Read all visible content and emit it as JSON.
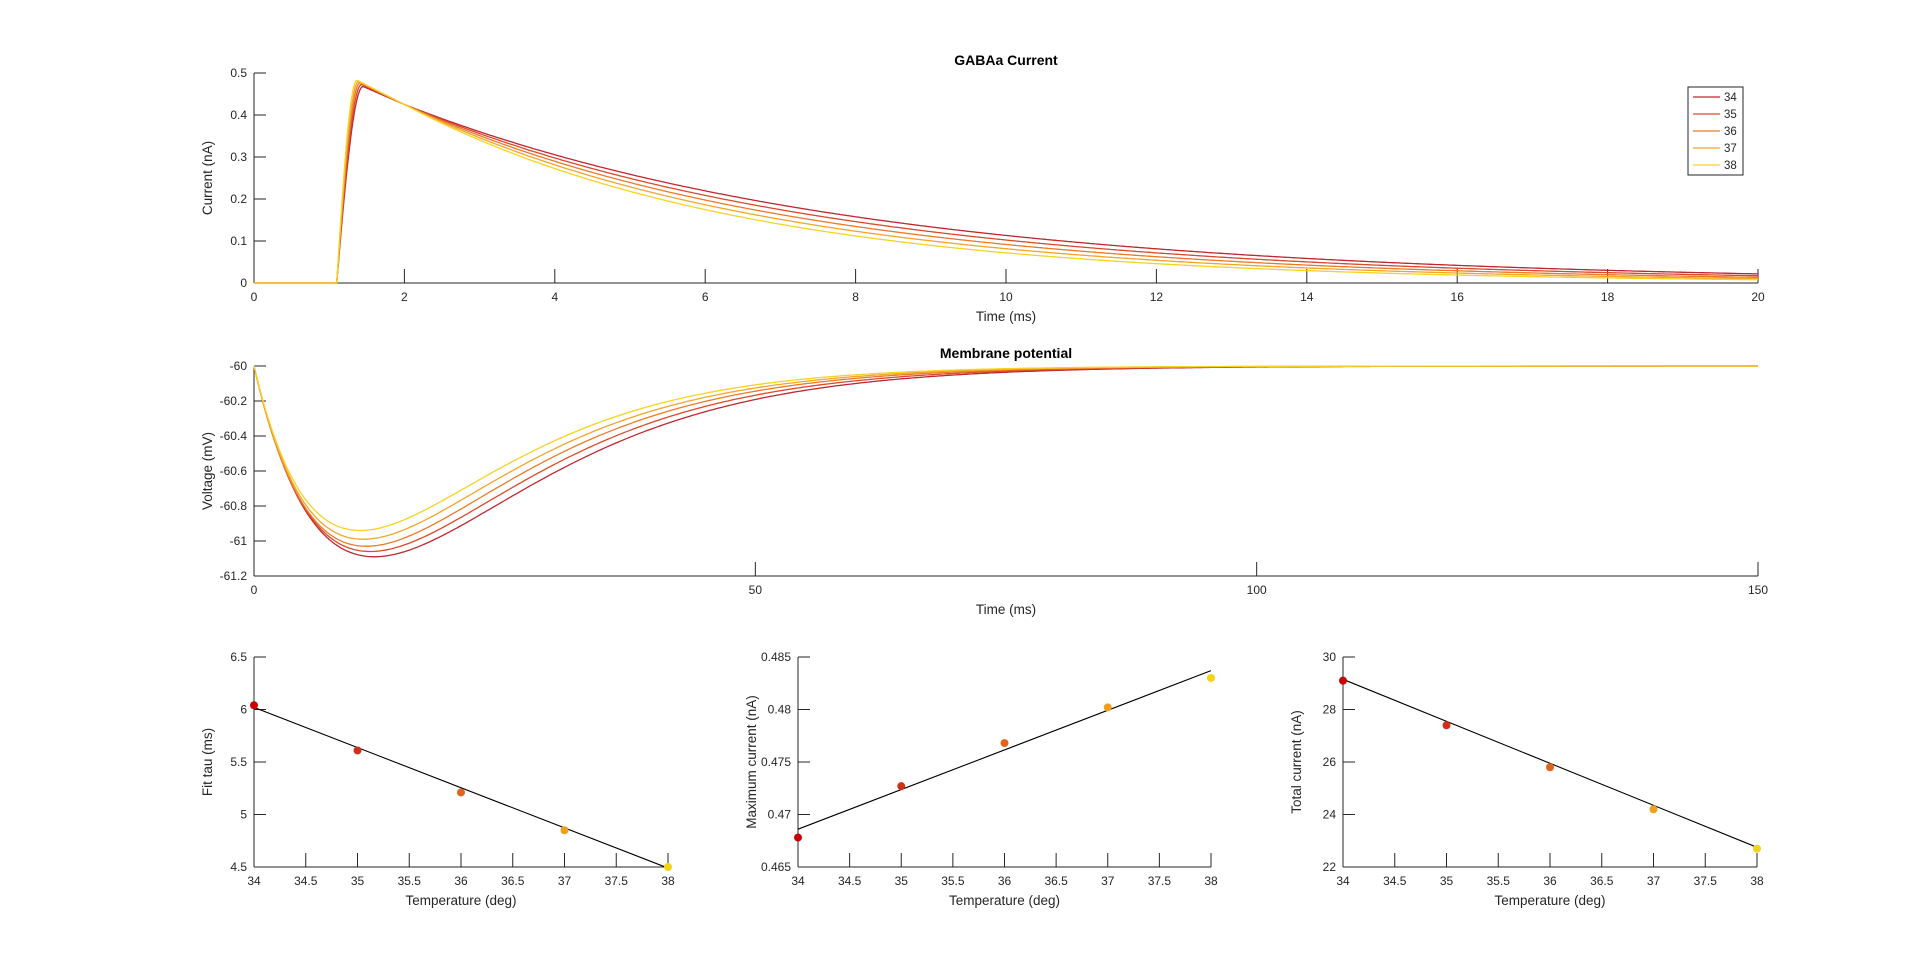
{
  "chart_data": [
    {
      "type": "line",
      "title": "GABAa Current",
      "xlabel": "Time (ms)",
      "ylabel": "Current (nA)",
      "xlim": [
        0,
        20
      ],
      "ylim": [
        0,
        0.5
      ],
      "xticks": [
        0,
        2,
        4,
        6,
        8,
        10,
        12,
        14,
        16,
        18,
        20
      ],
      "yticks": [
        0,
        0.1,
        0.2,
        0.3,
        0.4,
        0.5
      ],
      "legend_position": "top-right",
      "onset_ms": 1.1,
      "series": [
        {
          "name": "34",
          "color": "#c0262f",
          "peak_time": 1.45,
          "peak": 0.468,
          "value_at_2ms": 0.425,
          "decay_tau_ms": 6.05
        },
        {
          "name": "35",
          "color": "#d94a2b",
          "peak_time": 1.43,
          "peak": 0.473,
          "value_at_2ms": 0.425,
          "decay_tau_ms": 5.62
        },
        {
          "name": "36",
          "color": "#ea7a28",
          "peak_time": 1.41,
          "peak": 0.477,
          "value_at_2ms": 0.425,
          "decay_tau_ms": 5.22
        },
        {
          "name": "37",
          "color": "#f2a52a",
          "peak_time": 1.39,
          "peak": 0.48,
          "value_at_2ms": 0.425,
          "decay_tau_ms": 4.85
        },
        {
          "name": "38",
          "color": "#f7d21f",
          "peak_time": 1.37,
          "peak": 0.483,
          "value_at_2ms": 0.425,
          "decay_tau_ms": 4.5
        }
      ]
    },
    {
      "type": "line",
      "title": "Membrane potential",
      "xlabel": "Time (ms)",
      "ylabel": "Voltage (mV)",
      "xlim": [
        0,
        150
      ],
      "ylim": [
        -61.2,
        -60
      ],
      "xticks": [
        0,
        50,
        100,
        150
      ],
      "yticks": [
        -61.2,
        -61,
        -60.8,
        -60.6,
        -60.4,
        -60.2,
        -60
      ],
      "series": [
        {
          "name": "34",
          "color": "#c0262f",
          "min_time": 12.0,
          "min": -61.09
        },
        {
          "name": "35",
          "color": "#d94a2b",
          "min_time": 11.6,
          "min": -61.06
        },
        {
          "name": "36",
          "color": "#ea7a28",
          "min_time": 11.2,
          "min": -61.03
        },
        {
          "name": "37",
          "color": "#f2a52a",
          "min_time": 10.9,
          "min": -60.99
        },
        {
          "name": "38",
          "color": "#f7d21f",
          "min_time": 10.6,
          "min": -60.94
        }
      ]
    },
    {
      "type": "scatter",
      "xlabel": "Temperature (deg)",
      "ylabel": "Fit tau (ms)",
      "xlim": [
        34,
        38
      ],
      "ylim": [
        4.5,
        6.5
      ],
      "xticks": [
        34,
        34.5,
        35,
        35.5,
        36,
        36.5,
        37,
        37.5,
        38
      ],
      "yticks": [
        4.5,
        5,
        5.5,
        6,
        6.5
      ],
      "points": {
        "x": [
          34,
          35,
          36,
          37,
          38
        ],
        "y": [
          6.04,
          5.61,
          5.21,
          4.85,
          4.5
        ],
        "colors": [
          "#cc0000",
          "#d12f1a",
          "#e0641c",
          "#eea01c",
          "#f4d31b"
        ]
      },
      "fit_line": {
        "x": [
          34,
          38
        ],
        "y": [
          6.02,
          4.49
        ],
        "color": "#000000"
      }
    },
    {
      "type": "scatter",
      "xlabel": "Temperature (deg)",
      "ylabel": "Maximum current (nA)",
      "xlim": [
        34,
        38
      ],
      "ylim": [
        0.465,
        0.485
      ],
      "xticks": [
        34,
        34.5,
        35,
        35.5,
        36,
        36.5,
        37,
        37.5,
        38
      ],
      "yticks": [
        0.465,
        0.47,
        0.475,
        0.48,
        0.485
      ],
      "points": {
        "x": [
          34,
          35,
          36,
          37,
          38
        ],
        "y": [
          0.4678,
          0.4727,
          0.4768,
          0.4802,
          0.483
        ],
        "colors": [
          "#cc0000",
          "#d12f1a",
          "#e0641c",
          "#eea01c",
          "#f4d31b"
        ]
      },
      "fit_line": {
        "x": [
          34,
          38
        ],
        "y": [
          0.4686,
          0.4837
        ],
        "color": "#000000"
      }
    },
    {
      "type": "scatter",
      "xlabel": "Temperature (deg)",
      "ylabel": "Total current (nA)",
      "xlim": [
        34,
        38
      ],
      "ylim": [
        22,
        30
      ],
      "xticks": [
        34,
        34.5,
        35,
        35.5,
        36,
        36.5,
        37,
        37.5,
        38
      ],
      "yticks": [
        22,
        24,
        26,
        28,
        30
      ],
      "points": {
        "x": [
          34,
          35,
          36,
          37,
          38
        ],
        "y": [
          29.1,
          27.4,
          25.8,
          24.2,
          22.7
        ],
        "colors": [
          "#cc0000",
          "#d12f1a",
          "#e0641c",
          "#eea01c",
          "#f4d31b"
        ]
      },
      "fit_line": {
        "x": [
          34,
          38
        ],
        "y": [
          29.15,
          22.75
        ],
        "color": "#000000"
      }
    }
  ]
}
